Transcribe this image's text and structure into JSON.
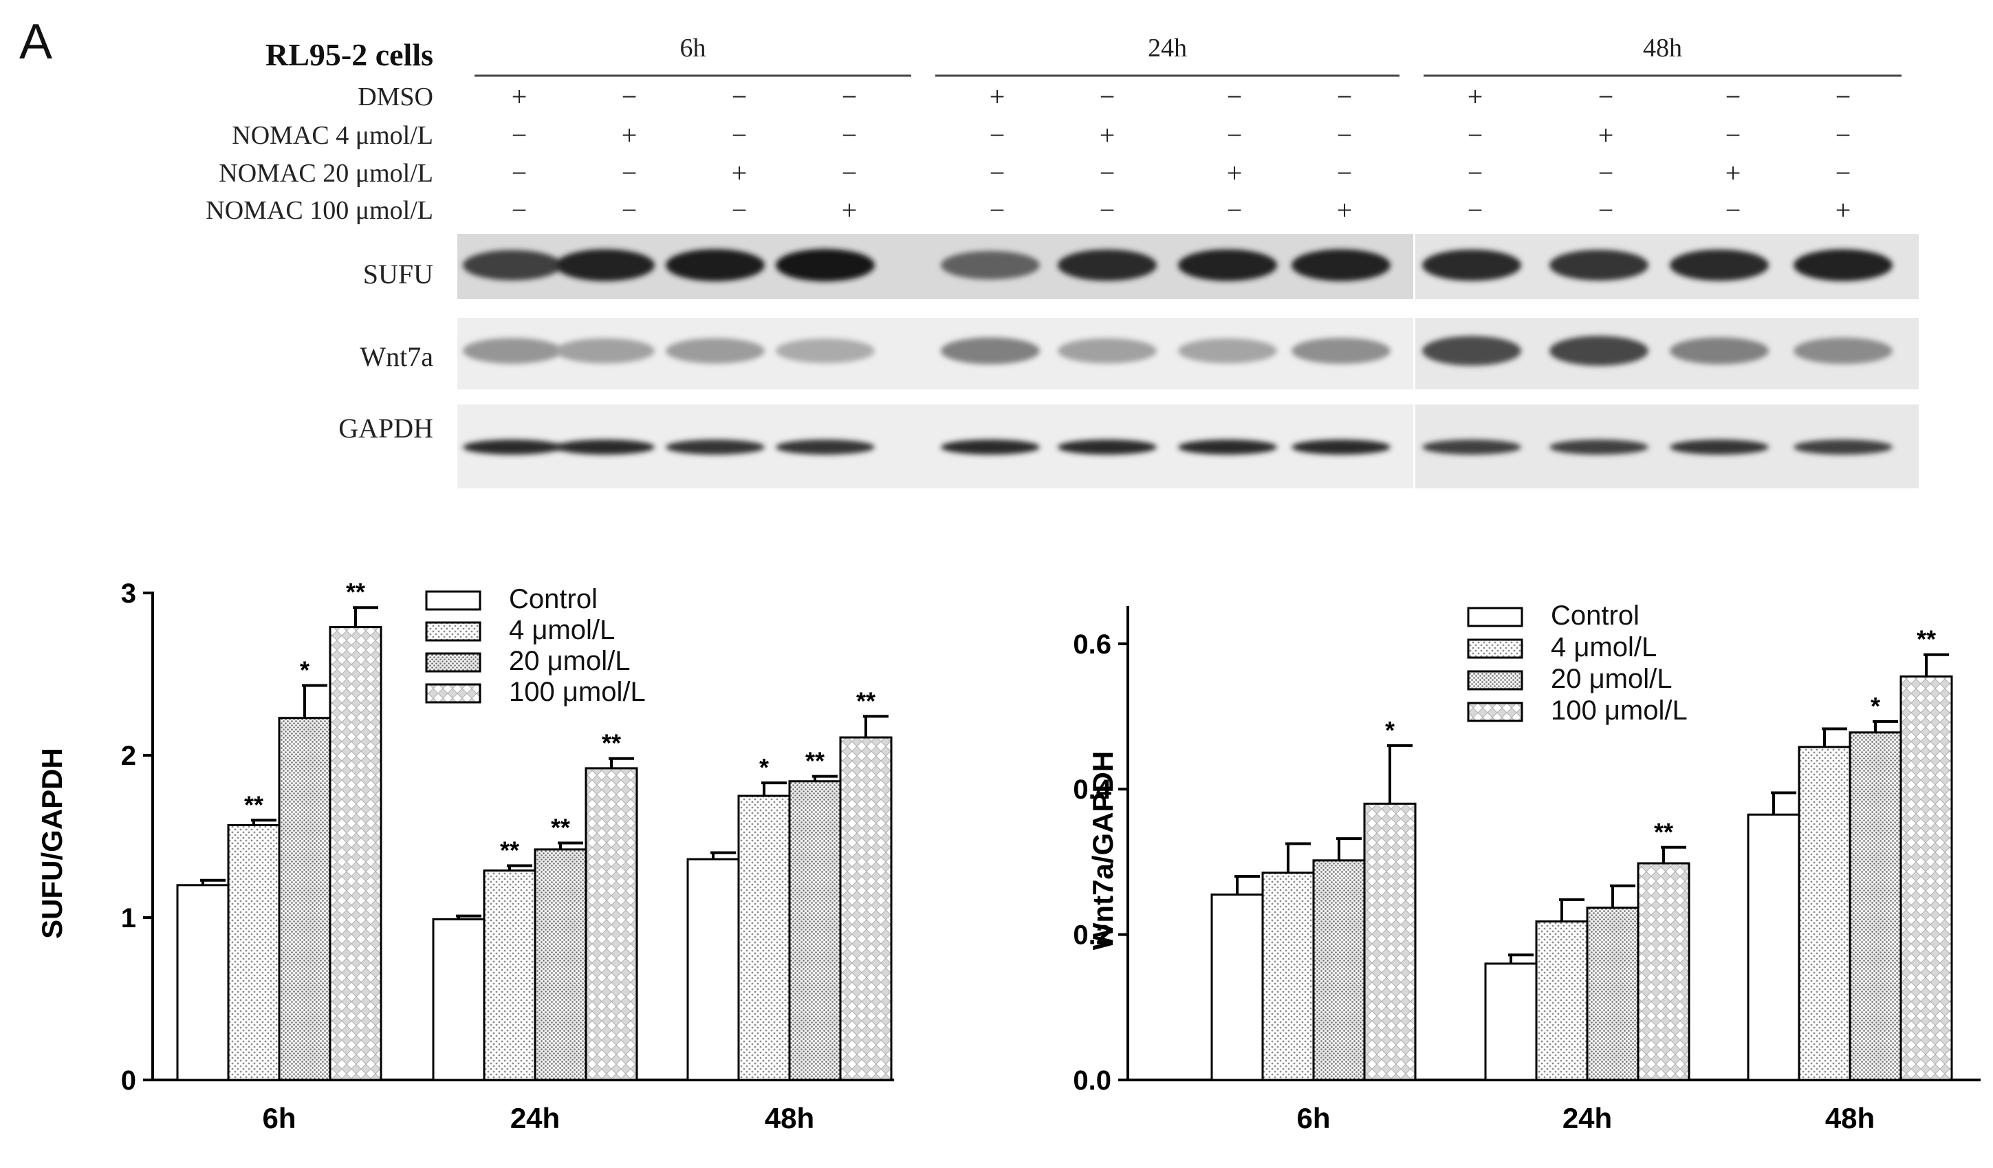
{
  "panel_label": "A",
  "blot": {
    "cell_line": "RL95-2 cells",
    "time_groups": [
      "6h",
      "24h",
      "48h"
    ],
    "treatment_rows": [
      {
        "label": "DMSO",
        "signs": [
          "+",
          "−",
          "−",
          "−",
          "+",
          "−",
          "−",
          "−",
          "+",
          "−",
          "−",
          "−"
        ]
      },
      {
        "label": "NOMAC 4 μmol/L",
        "signs": [
          "−",
          "+",
          "−",
          "−",
          "−",
          "+",
          "−",
          "−",
          "−",
          "+",
          "−",
          "−"
        ]
      },
      {
        "label": "NOMAC 20 μmol/L",
        "signs": [
          "−",
          "−",
          "+",
          "−",
          "−",
          "−",
          "+",
          "−",
          "−",
          "−",
          "+",
          "−"
        ]
      },
      {
        "label": "NOMAC 100 μmol/L",
        "signs": [
          "−",
          "−",
          "−",
          "+",
          "−",
          "−",
          "−",
          "+",
          "−",
          "−",
          "−",
          "+"
        ]
      }
    ],
    "proteins": [
      "SUFU",
      "Wnt7a",
      "GAPDH"
    ],
    "band_intensity": {
      "SUFU": [
        0.75,
        0.9,
        0.92,
        0.95,
        0.6,
        0.85,
        0.88,
        0.9,
        0.85,
        0.8,
        0.85,
        0.9
      ],
      "Wnt7a": [
        0.35,
        0.3,
        0.32,
        0.25,
        0.45,
        0.3,
        0.28,
        0.38,
        0.7,
        0.72,
        0.45,
        0.4
      ],
      "GAPDH": [
        0.85,
        0.85,
        0.8,
        0.8,
        0.85,
        0.85,
        0.85,
        0.85,
        0.75,
        0.75,
        0.8,
        0.75
      ]
    }
  },
  "legend_colors": {
    "bar_outline": "#000000",
    "bar_fill_control": "#ffffff"
  },
  "chart_data": [
    {
      "type": "bar",
      "categories": [
        "6h",
        "24h",
        "48h"
      ],
      "ylabel": "SUFU/GAPDH",
      "xlabel": "",
      "ylim": [
        0,
        3
      ],
      "yticks": [
        "0",
        "1",
        "2",
        "3"
      ],
      "legend_position": "top-right",
      "series": [
        {
          "name": "Control",
          "values": [
            1.2,
            0.99,
            1.36
          ],
          "errors": [
            0.03,
            0.02,
            0.04
          ],
          "sig": [
            "",
            "",
            ""
          ],
          "pattern": "none"
        },
        {
          "name": "4 μmol/L",
          "values": [
            1.57,
            1.29,
            1.75
          ],
          "errors": [
            0.03,
            0.03,
            0.08
          ],
          "sig": [
            "**",
            "**",
            "*"
          ],
          "pattern": "dots"
        },
        {
          "name": "20 μmol/L",
          "values": [
            2.23,
            1.42,
            1.84
          ],
          "errors": [
            0.2,
            0.04,
            0.03
          ],
          "sig": [
            "*",
            "**",
            "**"
          ],
          "pattern": "dense"
        },
        {
          "name": "100 μmol/L",
          "values": [
            2.79,
            1.92,
            2.11
          ],
          "errors": [
            0.12,
            0.06,
            0.13
          ],
          "sig": [
            "**",
            "**",
            "**"
          ],
          "pattern": "cross"
        }
      ]
    },
    {
      "type": "bar",
      "categories": [
        "6h",
        "24h",
        "48h"
      ],
      "ylabel": "Wnt7a/GAPDH",
      "xlabel": "",
      "ylim": [
        0,
        0.65
      ],
      "yticks": [
        "0.0",
        "0.2",
        "0.4",
        "0.6"
      ],
      "legend_position": "top-center",
      "series": [
        {
          "name": "Control",
          "values": [
            0.255,
            0.16,
            0.365
          ],
          "errors": [
            0.025,
            0.012,
            0.03
          ],
          "sig": [
            "",
            "",
            ""
          ],
          "pattern": "none"
        },
        {
          "name": "4 μmol/L",
          "values": [
            0.285,
            0.218,
            0.458
          ],
          "errors": [
            0.04,
            0.03,
            0.025
          ],
          "sig": [
            "",
            "",
            ""
          ],
          "pattern": "dots"
        },
        {
          "name": "20 μmol/L",
          "values": [
            0.302,
            0.237,
            0.478
          ],
          "errors": [
            0.03,
            0.03,
            0.015
          ],
          "sig": [
            "",
            "",
            "*"
          ],
          "pattern": "dense"
        },
        {
          "name": "100 μmol/L",
          "values": [
            0.38,
            0.298,
            0.555
          ],
          "errors": [
            0.08,
            0.022,
            0.03
          ],
          "sig": [
            "*",
            "**",
            "**"
          ],
          "pattern": "cross"
        }
      ]
    }
  ]
}
